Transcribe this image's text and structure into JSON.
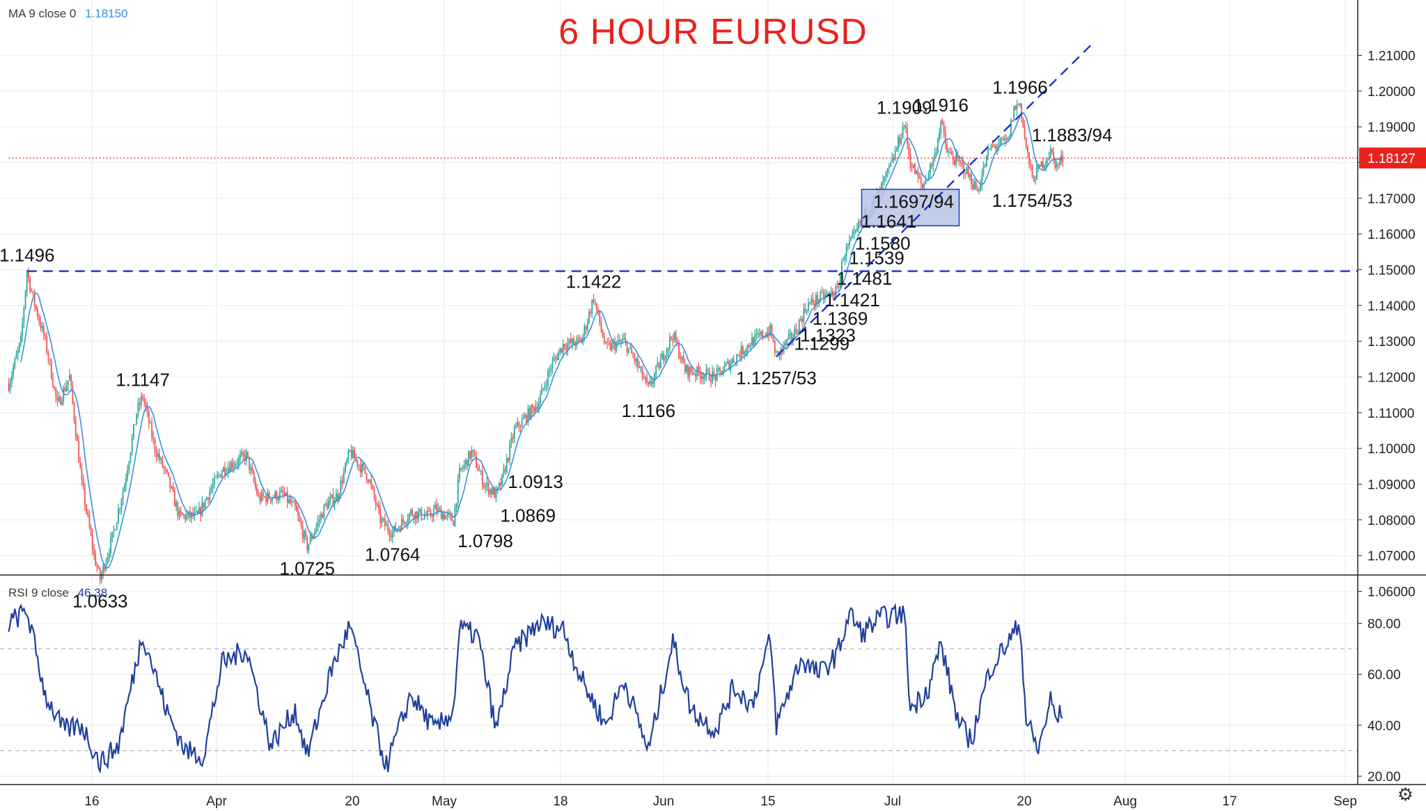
{
  "title": "6 HOUR EURUSD",
  "ma_legend": {
    "label": "MA 9 close 0",
    "value": "1.18150"
  },
  "rsi_legend": {
    "label": "RSI 9 close",
    "value": "46.38"
  },
  "current_price": "1.18127",
  "chart_data": [
    {
      "type": "candlestick",
      "title": "6 HOUR EURUSD",
      "x_ticks": [
        "16",
        "Apr",
        "20",
        "May",
        "18",
        "Jun",
        "15",
        "Jul",
        "20",
        "Aug",
        "17",
        "Sep"
      ],
      "y_ticks": [
        "1.06000",
        "1.07000",
        "1.08000",
        "1.09000",
        "1.10000",
        "1.11000",
        "1.12000",
        "1.13000",
        "1.14000",
        "1.15000",
        "1.16000",
        "1.17000",
        "1.18000",
        "1.19000",
        "1.20000",
        "1.21000"
      ],
      "ylim": [
        1.055,
        1.2135
      ],
      "price_path": [
        {
          "t": "Mar 06",
          "v": 1.118
        },
        {
          "t": "Mar 08",
          "v": 1.13
        },
        {
          "t": "Mar 09",
          "v": 1.1496
        },
        {
          "t": "Mar 10",
          "v": 1.142
        },
        {
          "t": "Mar 12",
          "v": 1.13
        },
        {
          "t": "Mar 14",
          "v": 1.112
        },
        {
          "t": "Mar 16",
          "v": 1.12
        },
        {
          "t": "Mar 18",
          "v": 1.09
        },
        {
          "t": "Mar 20",
          "v": 1.07
        },
        {
          "t": "Mar 21",
          "v": 1.0633
        },
        {
          "t": "Mar 23",
          "v": 1.075
        },
        {
          "t": "Mar 25",
          "v": 1.09
        },
        {
          "t": "Mar 27",
          "v": 1.11
        },
        {
          "t": "Mar 28",
          "v": 1.1147
        },
        {
          "t": "Mar 30",
          "v": 1.1
        },
        {
          "t": "Apr 01",
          "v": 1.092
        },
        {
          "t": "Apr 03",
          "v": 1.081
        },
        {
          "t": "Apr 06",
          "v": 1.081
        },
        {
          "t": "Apr 08",
          "v": 1.088
        },
        {
          "t": "Apr 10",
          "v": 1.094
        },
        {
          "t": "Apr 14",
          "v": 1.098
        },
        {
          "t": "Apr 16",
          "v": 1.086
        },
        {
          "t": "Apr 20",
          "v": 1.087
        },
        {
          "t": "Apr 22",
          "v": 1.083
        },
        {
          "t": "Apr 24",
          "v": 1.0725
        },
        {
          "t": "Apr 27",
          "v": 1.084
        },
        {
          "t": "Apr 29",
          "v": 1.087
        },
        {
          "t": "May 01",
          "v": 1.099
        },
        {
          "t": "May 04",
          "v": 1.092
        },
        {
          "t": "May 06",
          "v": 1.08
        },
        {
          "t": "May 07",
          "v": 1.078
        },
        {
          "t": "May 08",
          "v": 1.0764
        },
        {
          "t": "May 11",
          "v": 1.082
        },
        {
          "t": "May 14",
          "v": 1.081
        },
        {
          "t": "May 15",
          "v": 1.083
        },
        {
          "t": "May 18",
          "v": 1.0798
        },
        {
          "t": "May 19",
          "v": 1.093
        },
        {
          "t": "May 21",
          "v": 1.099
        },
        {
          "t": "May 23",
          "v": 1.09
        },
        {
          "t": "May 25",
          "v": 1.0869
        },
        {
          "t": "May 26",
          "v": 1.0913
        },
        {
          "t": "May 28",
          "v": 1.105
        },
        {
          "t": "Jun 01",
          "v": 1.113
        },
        {
          "t": "Jun 03",
          "v": 1.123
        },
        {
          "t": "Jun 05",
          "v": 1.129
        },
        {
          "t": "Jun 08",
          "v": 1.13
        },
        {
          "t": "Jun 10",
          "v": 1.1422
        },
        {
          "t": "Jun 12",
          "v": 1.128
        },
        {
          "t": "Jun 15",
          "v": 1.13
        },
        {
          "t": "Jun 17",
          "v": 1.124
        },
        {
          "t": "Jun 19",
          "v": 1.1166
        },
        {
          "t": "Jun 23",
          "v": 1.132
        },
        {
          "t": "Jun 25",
          "v": 1.122
        },
        {
          "t": "Jun 30",
          "v": 1.12
        },
        {
          "t": "Jul 03",
          "v": 1.125
        },
        {
          "t": "Jul 06",
          "v": 1.13
        },
        {
          "t": "Jul 09",
          "v": 1.133
        },
        {
          "t": "Jul 10",
          "v": 1.1257
        },
        {
          "t": "Jul 13",
          "v": 1.1323
        },
        {
          "t": "Jul 15",
          "v": 1.14
        },
        {
          "t": "Jul 17",
          "v": 1.142
        },
        {
          "t": "Jul 20",
          "v": 1.144
        },
        {
          "t": "Jul 21",
          "v": 1.1539
        },
        {
          "t": "Jul 23",
          "v": 1.16
        },
        {
          "t": "Jul 24",
          "v": 1.1641
        },
        {
          "t": "Jul 27",
          "v": 1.172
        },
        {
          "t": "Jul 29",
          "v": 1.18
        },
        {
          "t": "Jul 31",
          "v": 1.1909
        },
        {
          "t": "Aug 01",
          "v": 1.18
        },
        {
          "t": "Aug 03",
          "v": 1.173
        },
        {
          "t": "Aug 05",
          "v": 1.182
        },
        {
          "t": "Aug 06",
          "v": 1.1916
        },
        {
          "t": "Aug 07",
          "v": 1.183
        },
        {
          "t": "Aug 10",
          "v": 1.178
        },
        {
          "t": "Aug 12",
          "v": 1.172
        },
        {
          "t": "Aug 14",
          "v": 1.184
        },
        {
          "t": "Aug 17",
          "v": 1.186
        },
        {
          "t": "Aug 18",
          "v": 1.195
        },
        {
          "t": "Aug 19",
          "v": 1.1966
        },
        {
          "t": "Aug 20",
          "v": 1.184
        },
        {
          "t": "Aug 21",
          "v": 1.1754
        },
        {
          "t": "Aug 24",
          "v": 1.183
        },
        {
          "t": "Aug 25",
          "v": 1.179
        },
        {
          "t": "Aug 26",
          "v": 1.1812
        }
      ],
      "price_labels": [
        {
          "text": "1.1496",
          "t": "Mar 09",
          "v": 1.1496,
          "pos": "above"
        },
        {
          "text": "1.0633",
          "t": "Mar 21",
          "v": 1.0633,
          "pos": "below"
        },
        {
          "text": "1.1147",
          "t": "Mar 28",
          "v": 1.1147,
          "pos": "above"
        },
        {
          "text": "1.0725",
          "t": "Apr 24",
          "v": 1.0725,
          "pos": "below"
        },
        {
          "text": "1.0764",
          "t": "May 08",
          "v": 1.0764,
          "pos": "below"
        },
        {
          "text": "1.0798",
          "t": "May 18",
          "v": 1.0798,
          "pos": "below-right"
        },
        {
          "text": "1.0869",
          "t": "May 25",
          "v": 1.0869,
          "pos": "below-right"
        },
        {
          "text": "1.0913",
          "t": "May 26",
          "v": 1.0913,
          "pos": "right"
        },
        {
          "text": "1.1422",
          "t": "Jun 10",
          "v": 1.1422,
          "pos": "above"
        },
        {
          "text": "1.1166",
          "t": "Jun 19",
          "v": 1.1166,
          "pos": "below"
        },
        {
          "text": "1.1257/53",
          "t": "Jul 10",
          "v": 1.1257,
          "pos": "below"
        },
        {
          "text": "1.1299",
          "t": "Jul 12",
          "v": 1.1299,
          "pos": "right"
        },
        {
          "text": "1.1323",
          "t": "Jul 13",
          "v": 1.1323,
          "pos": "right"
        },
        {
          "text": "1.1369",
          "t": "Jul 15",
          "v": 1.1369,
          "pos": "right"
        },
        {
          "text": "1.1421",
          "t": "Jul 17",
          "v": 1.1421,
          "pos": "right"
        },
        {
          "text": "1.1481",
          "t": "Jul 19",
          "v": 1.1481,
          "pos": "right"
        },
        {
          "text": "1.1539",
          "t": "Jul 21",
          "v": 1.1539,
          "pos": "right"
        },
        {
          "text": "1.1580",
          "t": "Jul 22",
          "v": 1.158,
          "pos": "right"
        },
        {
          "text": "1.1641",
          "t": "Jul 23",
          "v": 1.1641,
          "pos": "right"
        },
        {
          "text": "1.1697/94",
          "t": "Jul 25",
          "v": 1.1697,
          "pos": "right"
        },
        {
          "text": "1.1909",
          "t": "Jul 31",
          "v": 1.1909,
          "pos": "above"
        },
        {
          "text": "1.1916",
          "t": "Aug 06",
          "v": 1.1916,
          "pos": "above"
        },
        {
          "text": "1.1966",
          "t": "Aug 19",
          "v": 1.1966,
          "pos": "above"
        },
        {
          "text": "1.1883/94",
          "t": "Aug 20",
          "v": 1.1883,
          "pos": "right"
        },
        {
          "text": "1.1754/53",
          "t": "Aug 21",
          "v": 1.1754,
          "pos": "below"
        }
      ],
      "horizontal_lines": [
        {
          "name": "1.1496 resistance",
          "from": "Mar 09",
          "v": 1.1496,
          "style": "dashed",
          "color": "#1a33cc"
        },
        {
          "name": "current price",
          "from": "Mar 06",
          "v": 1.18127,
          "style": "dotted",
          "color": "#e8231c"
        }
      ],
      "trend_line": {
        "from_t": "Jul 10",
        "from_v": 1.1257,
        "to_t": "Aug 31",
        "to_v": 1.2135,
        "style": "dashed",
        "color": "#1a33cc"
      },
      "support_box": {
        "from_t": "Jul 24",
        "to_t": "Aug 09",
        "v_low": 1.1623,
        "v_high": 1.1725,
        "fill": "#b9c4e6",
        "stroke": "#1a33cc"
      },
      "colors": {
        "up": "#26a69a",
        "down": "#ef5350",
        "ma": "#3a8fe0",
        "rsi": "#1f3f9a",
        "title": "#e8231c"
      }
    },
    {
      "type": "line",
      "title": "RSI 9 close",
      "y_ticks": [
        "20.00",
        "40.00",
        "60.00",
        "80.00"
      ],
      "ylim": [
        17,
        92
      ],
      "reference_lines": [
        30,
        70
      ],
      "rsi_path": [
        {
          "t": "Mar 06",
          "v": 80
        },
        {
          "t": "Mar 09",
          "v": 85
        },
        {
          "t": "Mar 12",
          "v": 52
        },
        {
          "t": "Mar 15",
          "v": 38
        },
        {
          "t": "Mar 18",
          "v": 40
        },
        {
          "t": "Mar 21",
          "v": 25
        },
        {
          "t": "Mar 24",
          "v": 32
        },
        {
          "t": "Mar 28",
          "v": 76
        },
        {
          "t": "Apr 01",
          "v": 45
        },
        {
          "t": "Apr 04",
          "v": 30
        },
        {
          "t": "Apr 07",
          "v": 28
        },
        {
          "t": "Apr 10",
          "v": 64
        },
        {
          "t": "Apr 14",
          "v": 70
        },
        {
          "t": "Apr 18",
          "v": 32
        },
        {
          "t": "Apr 22",
          "v": 46
        },
        {
          "t": "Apr 24",
          "v": 28
        },
        {
          "t": "Apr 28",
          "v": 62
        },
        {
          "t": "May 01",
          "v": 79
        },
        {
          "t": "May 05",
          "v": 40
        },
        {
          "t": "May 07",
          "v": 24
        },
        {
          "t": "May 11",
          "v": 52
        },
        {
          "t": "May 15",
          "v": 38
        },
        {
          "t": "May 18",
          "v": 46
        },
        {
          "t": "May 19",
          "v": 78
        },
        {
          "t": "May 22",
          "v": 75
        },
        {
          "t": "May 25",
          "v": 38
        },
        {
          "t": "May 28",
          "v": 70
        },
        {
          "t": "Jun 01",
          "v": 80
        },
        {
          "t": "Jun 05",
          "v": 78
        },
        {
          "t": "Jun 08",
          "v": 58
        },
        {
          "t": "Jun 12",
          "v": 40
        },
        {
          "t": "Jun 15",
          "v": 58
        },
        {
          "t": "Jun 19",
          "v": 30
        },
        {
          "t": "Jun 23",
          "v": 73
        },
        {
          "t": "Jun 26",
          "v": 46
        },
        {
          "t": "Jun 30",
          "v": 38
        },
        {
          "t": "Jul 03",
          "v": 55
        },
        {
          "t": "Jul 06",
          "v": 48
        },
        {
          "t": "Jul 09",
          "v": 74
        },
        {
          "t": "Jul 10",
          "v": 40
        },
        {
          "t": "Jul 14",
          "v": 66
        },
        {
          "t": "Jul 17",
          "v": 60
        },
        {
          "t": "Jul 20",
          "v": 68
        },
        {
          "t": "Jul 22",
          "v": 84
        },
        {
          "t": "Jul 24",
          "v": 76
        },
        {
          "t": "Jul 27",
          "v": 82
        },
        {
          "t": "Jul 31",
          "v": 84
        },
        {
          "t": "Aug 01",
          "v": 46
        },
        {
          "t": "Aug 04",
          "v": 55
        },
        {
          "t": "Aug 06",
          "v": 72
        },
        {
          "t": "Aug 09",
          "v": 40
        },
        {
          "t": "Aug 11",
          "v": 34
        },
        {
          "t": "Aug 14",
          "v": 62
        },
        {
          "t": "Aug 18",
          "v": 76
        },
        {
          "t": "Aug 19",
          "v": 80
        },
        {
          "t": "Aug 20",
          "v": 42
        },
        {
          "t": "Aug 22",
          "v": 30
        },
        {
          "t": "Aug 24",
          "v": 50
        },
        {
          "t": "Aug 25",
          "v": 42
        },
        {
          "t": "Aug 26",
          "v": 46
        }
      ]
    }
  ]
}
